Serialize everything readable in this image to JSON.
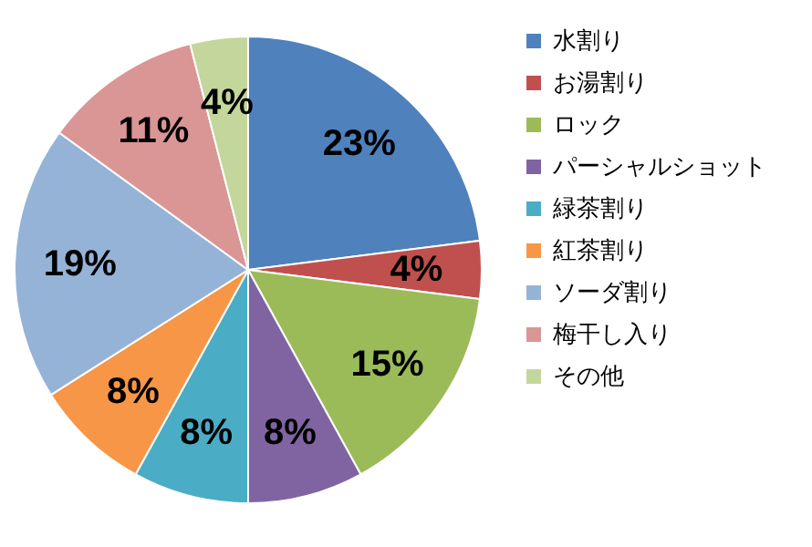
{
  "chart_data": {
    "type": "pie",
    "categories": [
      "水割り",
      "お湯割り",
      "ロック",
      "パーシャルショット",
      "緑茶割り",
      "紅茶割り",
      "ソーダ割り",
      "梅干し入り",
      "その他"
    ],
    "values": [
      23,
      4,
      15,
      8,
      8,
      8,
      19,
      11,
      4
    ],
    "colors": [
      "#4f81bd",
      "#c0504d",
      "#9bbb59",
      "#8064a2",
      "#4bacc6",
      "#f79646",
      "#95b3d7",
      "#d99694",
      "#c3d69b"
    ],
    "value_labels": [
      "23%",
      "4%",
      "15%",
      "8%",
      "8%",
      "8%",
      "19%",
      "11%",
      "4%"
    ],
    "legend": "right"
  }
}
